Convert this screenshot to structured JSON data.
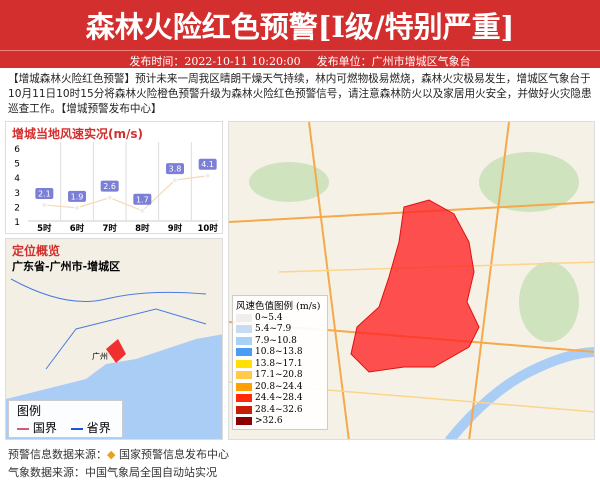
{
  "header": {
    "title": "森林火险红色预警[I级/特别严重]",
    "publish_time": "发布时间：2022-10-11 10:20:00",
    "publisher": "发布单位：广州市增城区气象台"
  },
  "content": "【增城森林火险红色预警】预计未来一周我区晴朗干燥天气持续，林内可燃物极易燃烧，森林火灾极易发生，增城区气象台于10月11日10时15分将森林火险橙色预警升级为森林火险红色预警信号，请注意森林防火以及家居用火安全，并做好火灾隐患巡查工作。【增城预警发布中心】",
  "wind_chart": {
    "title": "增城当地风速实况(m/s)"
  },
  "chart_data": {
    "type": "line",
    "title": "增城当地风速实况(m/s)",
    "categories": [
      "5时",
      "6时",
      "7时",
      "8时",
      "9时",
      "10时"
    ],
    "values": [
      2.1,
      1.9,
      2.6,
      1.7,
      3.8,
      4.1
    ],
    "ylim": [
      1,
      6
    ],
    "yticks": [
      1,
      2,
      3,
      4,
      5,
      6
    ],
    "grid": "vertical",
    "line_color": "#f5d9b8",
    "label_color": "#7b7fd6"
  },
  "location": {
    "title": "定位概览",
    "path": "广东省-广州市-增城区",
    "city_label": "广州",
    "legend_title": "图例",
    "national_border": "国界",
    "provincial_border": "省界"
  },
  "wind_legend": {
    "title": "风速色值图例 (m/s)",
    "items": [
      {
        "label": "0~5.4",
        "color": "#eeeeee"
      },
      {
        "label": "5.4~7.9",
        "color": "#c6dcf2"
      },
      {
        "label": "7.9~10.8",
        "color": "#a6d3f5"
      },
      {
        "label": "10.8~13.8",
        "color": "#4a9cf5"
      },
      {
        "label": "13.8~17.1",
        "color": "#ffe000"
      },
      {
        "label": "17.1~20.8",
        "color": "#ffc94a"
      },
      {
        "label": "20.8~24.4",
        "color": "#ff9f00"
      },
      {
        "label": "24.4~28.4",
        "color": "#ff2a0a"
      },
      {
        "label": "28.4~32.6",
        "color": "#c81e05"
      },
      {
        "label": ">32.6",
        "color": "#8b0000"
      }
    ]
  },
  "footer": {
    "source_label": "预警信息数据来源：",
    "source_name": "国家预警信息发布中心",
    "weather_source": "气象数据来源：中国气象局全国自动站实况"
  }
}
